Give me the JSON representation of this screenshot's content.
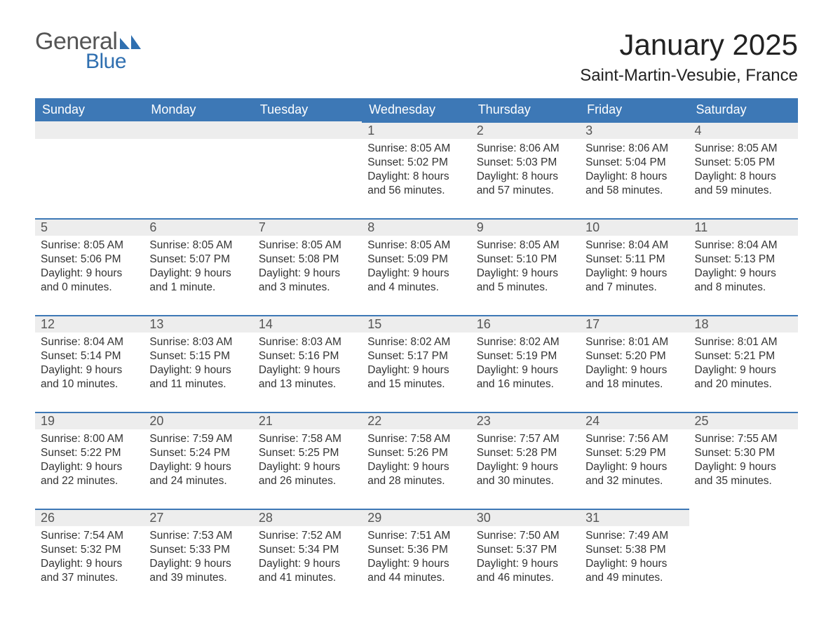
{
  "logo": {
    "general": "General",
    "blue": "Blue",
    "icon_color": "#2f6fb0"
  },
  "title": "January 2025",
  "location": "Saint-Martin-Vesubie, France",
  "header_bg": "#3d78b6",
  "header_text": "#ffffff",
  "daynum_bg": "#ededed",
  "daynum_border": "#3d78b6",
  "body_bg": "#ffffff",
  "text_color": "#333333",
  "days_of_week": [
    "Sunday",
    "Monday",
    "Tuesday",
    "Wednesday",
    "Thursday",
    "Friday",
    "Saturday"
  ],
  "weeks": [
    [
      null,
      null,
      null,
      {
        "n": "1",
        "sunrise": "8:05 AM",
        "sunset": "5:02 PM",
        "daylight": "8 hours and 56 minutes."
      },
      {
        "n": "2",
        "sunrise": "8:06 AM",
        "sunset": "5:03 PM",
        "daylight": "8 hours and 57 minutes."
      },
      {
        "n": "3",
        "sunrise": "8:06 AM",
        "sunset": "5:04 PM",
        "daylight": "8 hours and 58 minutes."
      },
      {
        "n": "4",
        "sunrise": "8:05 AM",
        "sunset": "5:05 PM",
        "daylight": "8 hours and 59 minutes."
      }
    ],
    [
      {
        "n": "5",
        "sunrise": "8:05 AM",
        "sunset": "5:06 PM",
        "daylight": "9 hours and 0 minutes."
      },
      {
        "n": "6",
        "sunrise": "8:05 AM",
        "sunset": "5:07 PM",
        "daylight": "9 hours and 1 minute."
      },
      {
        "n": "7",
        "sunrise": "8:05 AM",
        "sunset": "5:08 PM",
        "daylight": "9 hours and 3 minutes."
      },
      {
        "n": "8",
        "sunrise": "8:05 AM",
        "sunset": "5:09 PM",
        "daylight": "9 hours and 4 minutes."
      },
      {
        "n": "9",
        "sunrise": "8:05 AM",
        "sunset": "5:10 PM",
        "daylight": "9 hours and 5 minutes."
      },
      {
        "n": "10",
        "sunrise": "8:04 AM",
        "sunset": "5:11 PM",
        "daylight": "9 hours and 7 minutes."
      },
      {
        "n": "11",
        "sunrise": "8:04 AM",
        "sunset": "5:13 PM",
        "daylight": "9 hours and 8 minutes."
      }
    ],
    [
      {
        "n": "12",
        "sunrise": "8:04 AM",
        "sunset": "5:14 PM",
        "daylight": "9 hours and 10 minutes."
      },
      {
        "n": "13",
        "sunrise": "8:03 AM",
        "sunset": "5:15 PM",
        "daylight": "9 hours and 11 minutes."
      },
      {
        "n": "14",
        "sunrise": "8:03 AM",
        "sunset": "5:16 PM",
        "daylight": "9 hours and 13 minutes."
      },
      {
        "n": "15",
        "sunrise": "8:02 AM",
        "sunset": "5:17 PM",
        "daylight": "9 hours and 15 minutes."
      },
      {
        "n": "16",
        "sunrise": "8:02 AM",
        "sunset": "5:19 PM",
        "daylight": "9 hours and 16 minutes."
      },
      {
        "n": "17",
        "sunrise": "8:01 AM",
        "sunset": "5:20 PM",
        "daylight": "9 hours and 18 minutes."
      },
      {
        "n": "18",
        "sunrise": "8:01 AM",
        "sunset": "5:21 PM",
        "daylight": "9 hours and 20 minutes."
      }
    ],
    [
      {
        "n": "19",
        "sunrise": "8:00 AM",
        "sunset": "5:22 PM",
        "daylight": "9 hours and 22 minutes."
      },
      {
        "n": "20",
        "sunrise": "7:59 AM",
        "sunset": "5:24 PM",
        "daylight": "9 hours and 24 minutes."
      },
      {
        "n": "21",
        "sunrise": "7:58 AM",
        "sunset": "5:25 PM",
        "daylight": "9 hours and 26 minutes."
      },
      {
        "n": "22",
        "sunrise": "7:58 AM",
        "sunset": "5:26 PM",
        "daylight": "9 hours and 28 minutes."
      },
      {
        "n": "23",
        "sunrise": "7:57 AM",
        "sunset": "5:28 PM",
        "daylight": "9 hours and 30 minutes."
      },
      {
        "n": "24",
        "sunrise": "7:56 AM",
        "sunset": "5:29 PM",
        "daylight": "9 hours and 32 minutes."
      },
      {
        "n": "25",
        "sunrise": "7:55 AM",
        "sunset": "5:30 PM",
        "daylight": "9 hours and 35 minutes."
      }
    ],
    [
      {
        "n": "26",
        "sunrise": "7:54 AM",
        "sunset": "5:32 PM",
        "daylight": "9 hours and 37 minutes."
      },
      {
        "n": "27",
        "sunrise": "7:53 AM",
        "sunset": "5:33 PM",
        "daylight": "9 hours and 39 minutes."
      },
      {
        "n": "28",
        "sunrise": "7:52 AM",
        "sunset": "5:34 PM",
        "daylight": "9 hours and 41 minutes."
      },
      {
        "n": "29",
        "sunrise": "7:51 AM",
        "sunset": "5:36 PM",
        "daylight": "9 hours and 44 minutes."
      },
      {
        "n": "30",
        "sunrise": "7:50 AM",
        "sunset": "5:37 PM",
        "daylight": "9 hours and 46 minutes."
      },
      {
        "n": "31",
        "sunrise": "7:49 AM",
        "sunset": "5:38 PM",
        "daylight": "9 hours and 49 minutes."
      },
      null
    ]
  ],
  "labels": {
    "sunrise": "Sunrise:",
    "sunset": "Sunset:",
    "daylight": "Daylight:"
  }
}
